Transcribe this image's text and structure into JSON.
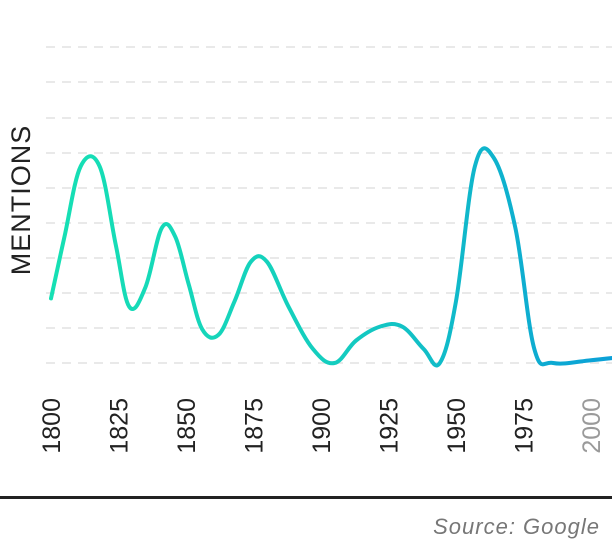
{
  "chart_data": {
    "type": "line",
    "title": "",
    "xlabel": "",
    "ylabel": "MENTIONS",
    "xlim": [
      1800,
      2000
    ],
    "ylim": [
      0,
      100
    ],
    "grid": true,
    "x_ticks": [
      "1800",
      "1825",
      "1850",
      "1875",
      "1900",
      "1925",
      "1950",
      "1975",
      "2000"
    ],
    "series": [
      {
        "color_start": "#16e0b4",
        "color_end": "#0b9fd8",
        "points": [
          [
            1800,
            23
          ],
          [
            1805,
            45
          ],
          [
            1811,
            70
          ],
          [
            1818,
            70
          ],
          [
            1824,
            42
          ],
          [
            1829,
            20
          ],
          [
            1835,
            27
          ],
          [
            1841,
            48
          ],
          [
            1846,
            45
          ],
          [
            1851,
            28
          ],
          [
            1856,
            12
          ],
          [
            1862,
            10
          ],
          [
            1868,
            22
          ],
          [
            1874,
            36
          ],
          [
            1880,
            36
          ],
          [
            1888,
            20
          ],
          [
            1897,
            5
          ],
          [
            1905,
            0
          ],
          [
            1913,
            8
          ],
          [
            1922,
            13
          ],
          [
            1930,
            13
          ],
          [
            1938,
            5
          ],
          [
            1944,
            0
          ],
          [
            1950,
            22
          ],
          [
            1957,
            70
          ],
          [
            1964,
            73
          ],
          [
            1972,
            48
          ],
          [
            1979,
            5
          ],
          [
            1986,
            0
          ],
          [
            2000,
            1
          ],
          [
            2010,
            2
          ]
        ]
      }
    ],
    "source": "Source: Google"
  }
}
